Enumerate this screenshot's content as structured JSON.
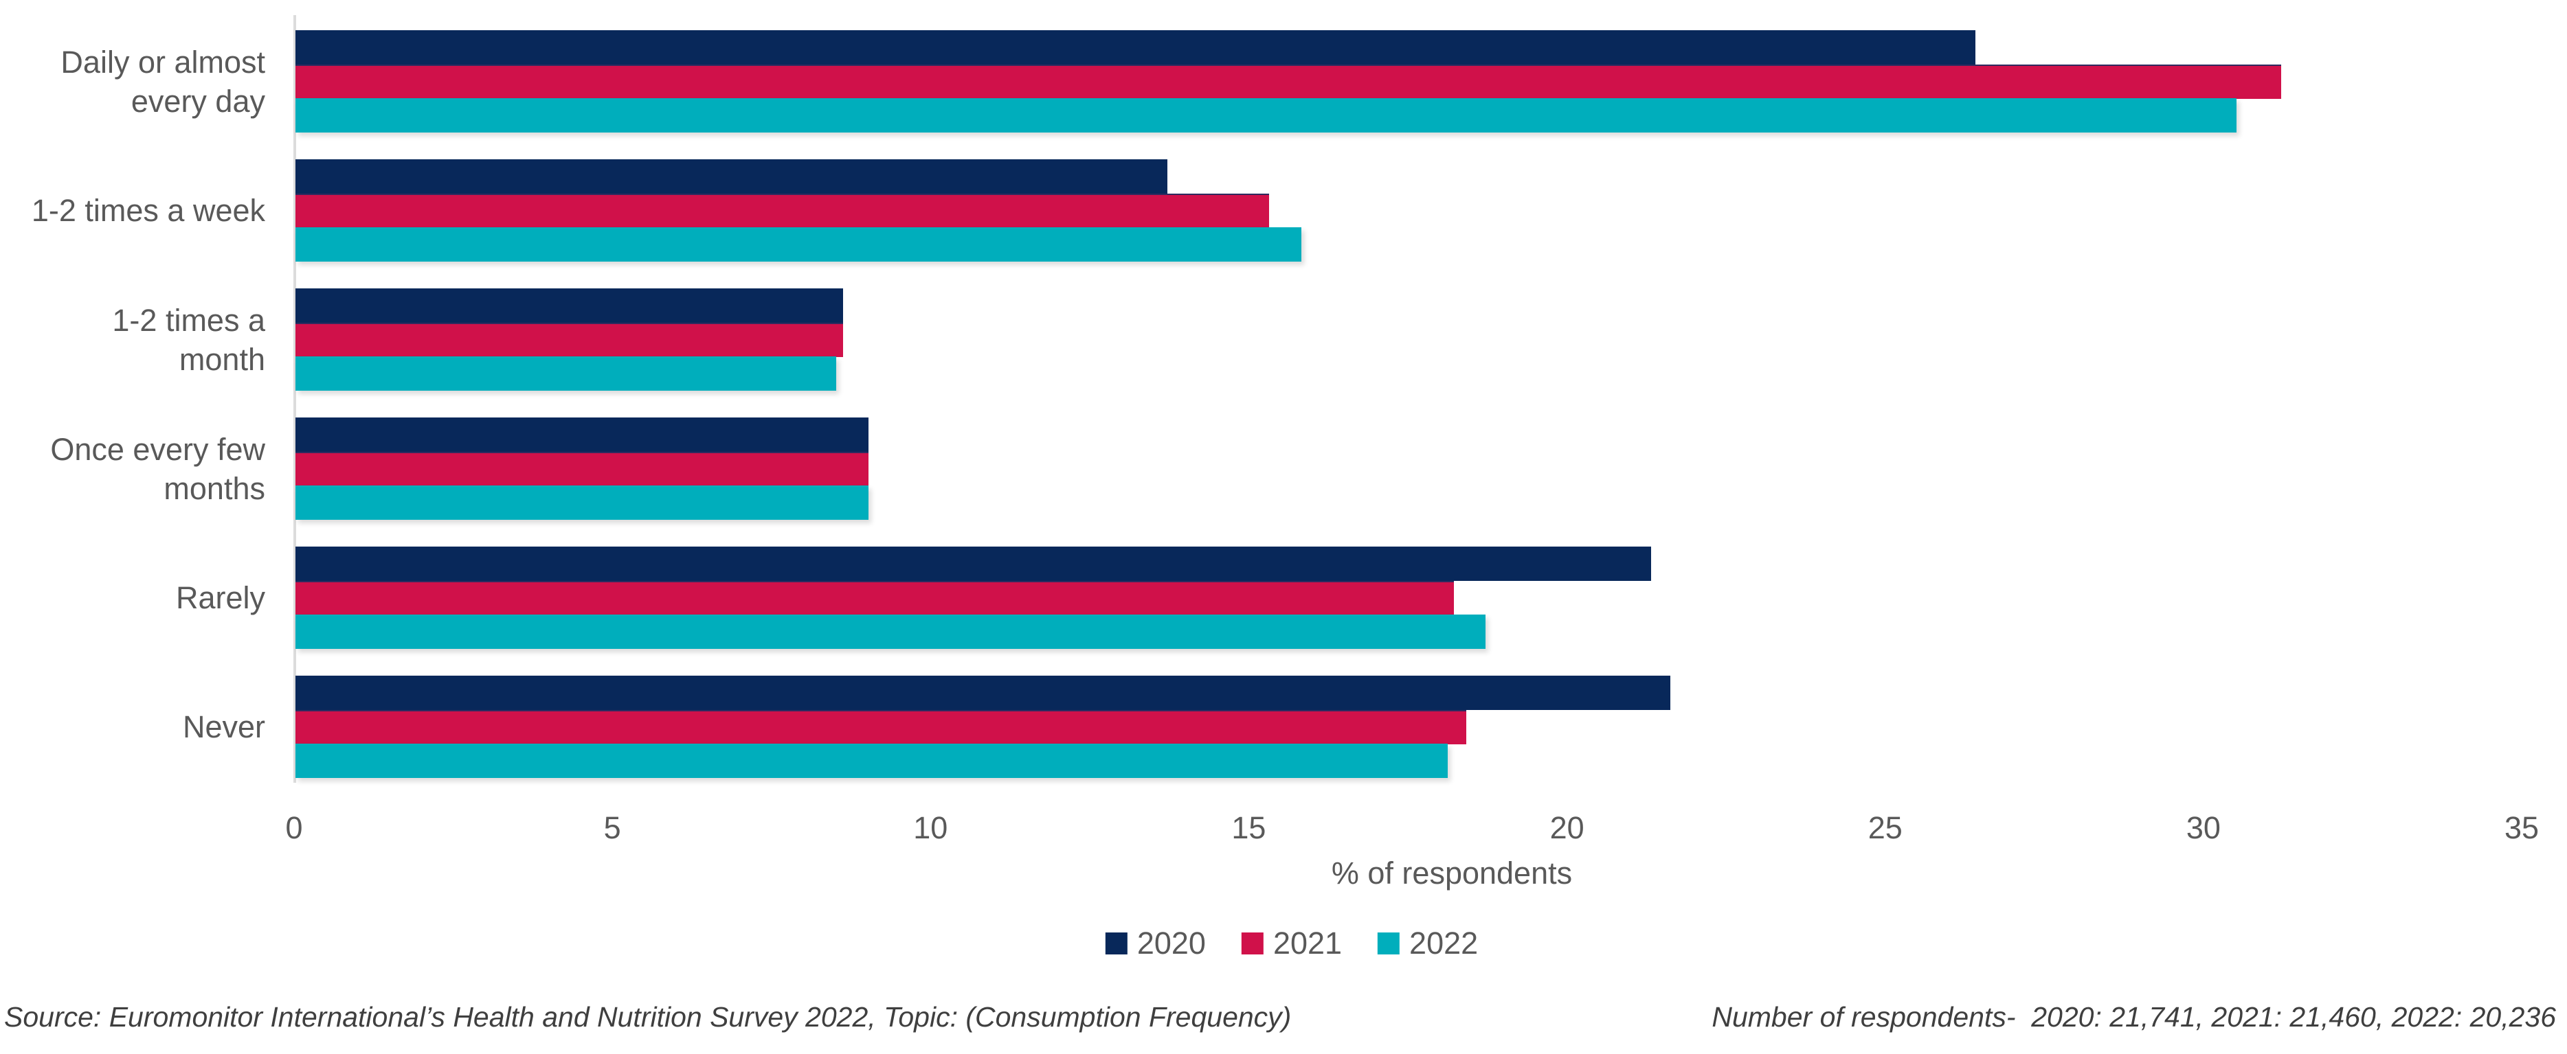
{
  "chart_data": {
    "type": "bar",
    "orientation": "horizontal",
    "title": "",
    "categories": [
      "Daily or almost\nevery day",
      "1-2 times a week",
      "1-2 times a\nmonth",
      "Once every few\nmonths",
      "Rarely",
      "Never"
    ],
    "series": [
      {
        "name": "2020",
        "color": "#08285a",
        "values": [
          26.4,
          13.7,
          8.6,
          9.0,
          21.3,
          21.6
        ]
      },
      {
        "name": "2021",
        "color": "#d0114a",
        "values": [
          31.2,
          15.3,
          8.6,
          9.0,
          18.2,
          18.4
        ]
      },
      {
        "name": "2022",
        "color": "#00aebc",
        "values": [
          30.5,
          15.8,
          8.5,
          9.0,
          18.7,
          18.1
        ]
      }
    ],
    "xlabel": "% of respondents",
    "ylabel": "",
    "xlim": [
      0,
      35
    ],
    "xticks": [
      0,
      5,
      10,
      15,
      20,
      25,
      30,
      35
    ],
    "grid": false,
    "legend_position": "bottom",
    "axis_line_color": "#dcdcdc",
    "text_color": "#595959"
  },
  "footer": {
    "source": "Source: Euromonitor International’s Health and Nutrition Survey 2022, Topic: (Consumption Frequency)",
    "respondents": "Number of respondents-  2020: 21,741, 2021: 21,460, 2022: 20,236"
  }
}
